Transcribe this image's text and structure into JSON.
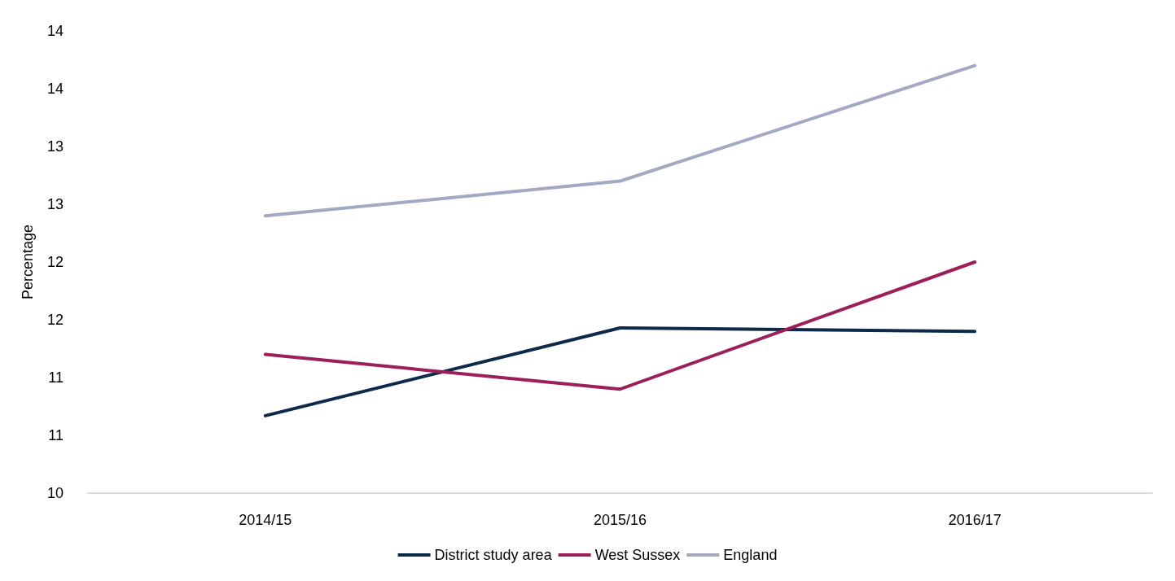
{
  "chart_data": {
    "type": "line",
    "ylabel": "Percentage",
    "categories": [
      "2014/15",
      "2015/16",
      "2016/17"
    ],
    "series": [
      {
        "name": "District study area",
        "color": "#0d2a4a",
        "values": [
          10.67,
          11.43,
          11.4
        ]
      },
      {
        "name": "West Sussex",
        "color": "#9c1f5a",
        "values": [
          11.2,
          10.9,
          12.0
        ]
      },
      {
        "name": "England",
        "color": "#a4a9c3",
        "values": [
          12.4,
          12.7,
          13.7
        ]
      }
    ],
    "ylim": [
      10,
      14
    ],
    "yticks": [
      10,
      {
        "value": 10.5,
        "label": "11"
      },
      11,
      {
        "value": 11.5,
        "label": "12"
      },
      12,
      {
        "value": 12.5,
        "label": "13"
      },
      13,
      {
        "value": 13.5,
        "label": "14"
      },
      14
    ],
    "grid": false,
    "legend": "bottom",
    "marker": "none",
    "line_style": "solid"
  }
}
